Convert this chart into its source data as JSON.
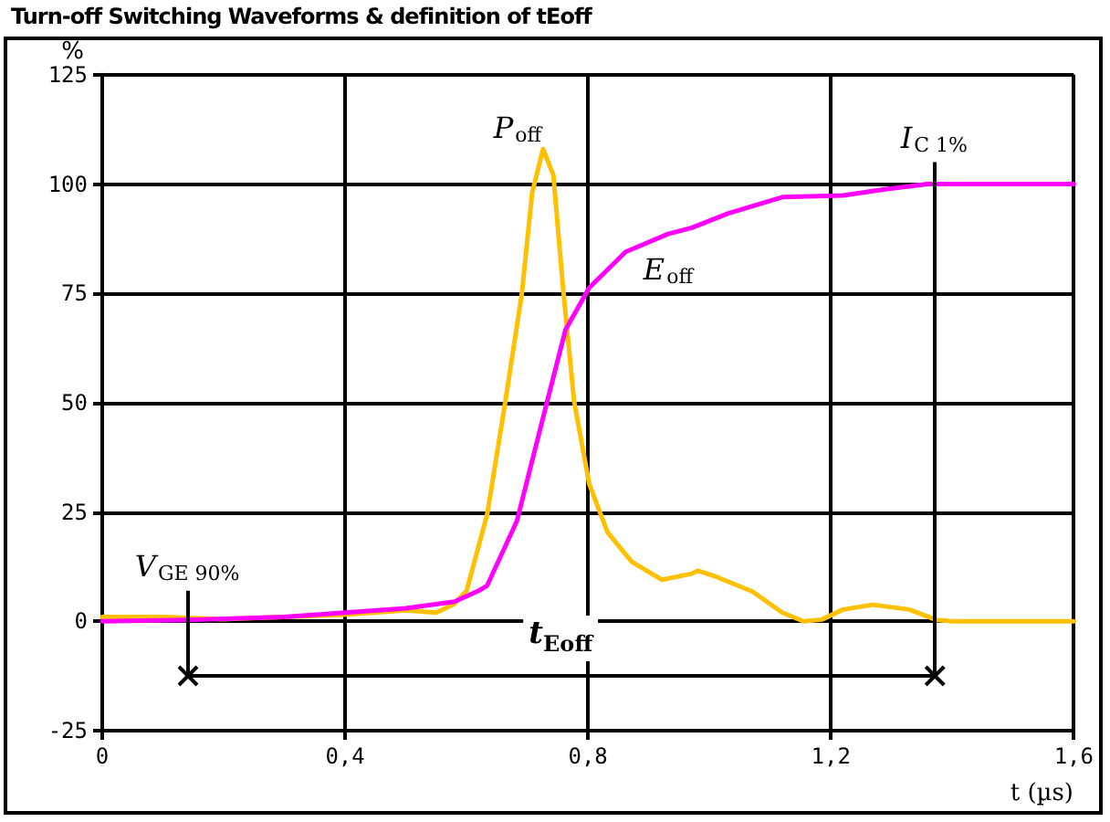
{
  "chart_data": {
    "type": "line",
    "title": "Turn-off Switching Waveforms & definition of tEoff",
    "xlabel": "t (µs)",
    "ylabel": "%",
    "xlim": [
      0,
      1.6
    ],
    "xticks": [
      0,
      {
        "value": 0.4,
        "label": "0,4"
      },
      {
        "value": 0.8,
        "label": "0,8"
      },
      {
        "value": 1.2,
        "label": "1,2"
      },
      {
        "value": 1.6,
        "label": "1,6"
      }
    ],
    "ylim": [
      -25,
      125
    ],
    "yticks": [
      -25,
      0,
      25,
      50,
      75,
      100,
      125
    ],
    "grid": true,
    "legend": false,
    "marker": "none",
    "line_style": "solid",
    "series": [
      {
        "name": "P$_{off}$",
        "color": "#ffc000",
        "x": [
          0,
          0.1,
          0.2,
          0.3,
          0.4,
          0.5,
          0.55,
          0.58,
          0.6,
          0.634,
          0.664,
          0.691,
          0.708,
          0.726,
          0.743,
          0.758,
          0.777,
          0.802,
          0.832,
          0.872,
          0.922,
          0.971,
          0.981,
          1.011,
          1.071,
          1.12,
          1.155,
          1.185,
          1.22,
          1.269,
          1.329,
          1.374,
          1.4,
          1.6
        ],
        "values": [
          1,
          1,
          0.5,
          1,
          1.5,
          2.5,
          2,
          4,
          7,
          24.5,
          50.4,
          74.9,
          98,
          108,
          102,
          77.6,
          50.4,
          31.4,
          20.4,
          13.6,
          9.5,
          10.9,
          11.6,
          10.2,
          6.8,
          2,
          0,
          0.4,
          2.7,
          3.8,
          2.7,
          0.3,
          0,
          0
        ]
      },
      {
        "name": "E$_{off}$",
        "color": "#ff00ff",
        "x": [
          0,
          0.14,
          0.3,
          0.4,
          0.5,
          0.58,
          0.62,
          0.634,
          0.683,
          0.733,
          0.763,
          0.802,
          0.862,
          0.932,
          0.971,
          1.031,
          1.12,
          1.22,
          1.289,
          1.359,
          1.4,
          1.6
        ],
        "values": [
          0,
          0.3,
          1,
          2,
          3,
          4.5,
          7,
          8.2,
          23,
          50.4,
          66.7,
          76.3,
          84.5,
          88.6,
          90,
          93.3,
          97,
          97.4,
          98.8,
          100,
          100,
          100
        ]
      }
    ],
    "ref_lines": [
      {
        "axis": "x",
        "value": 0.14
      },
      {
        "axis": "x",
        "value": 1.37
      }
    ],
    "annotations": [
      {
        "text": "V$_{GE 90%}$",
        "x": 0.14,
        "y": 7
      },
      {
        "text": "I$_{C 1%}$",
        "x": 1.37,
        "y": 105
      },
      "t$_{Eoff}$"
    ]
  }
}
